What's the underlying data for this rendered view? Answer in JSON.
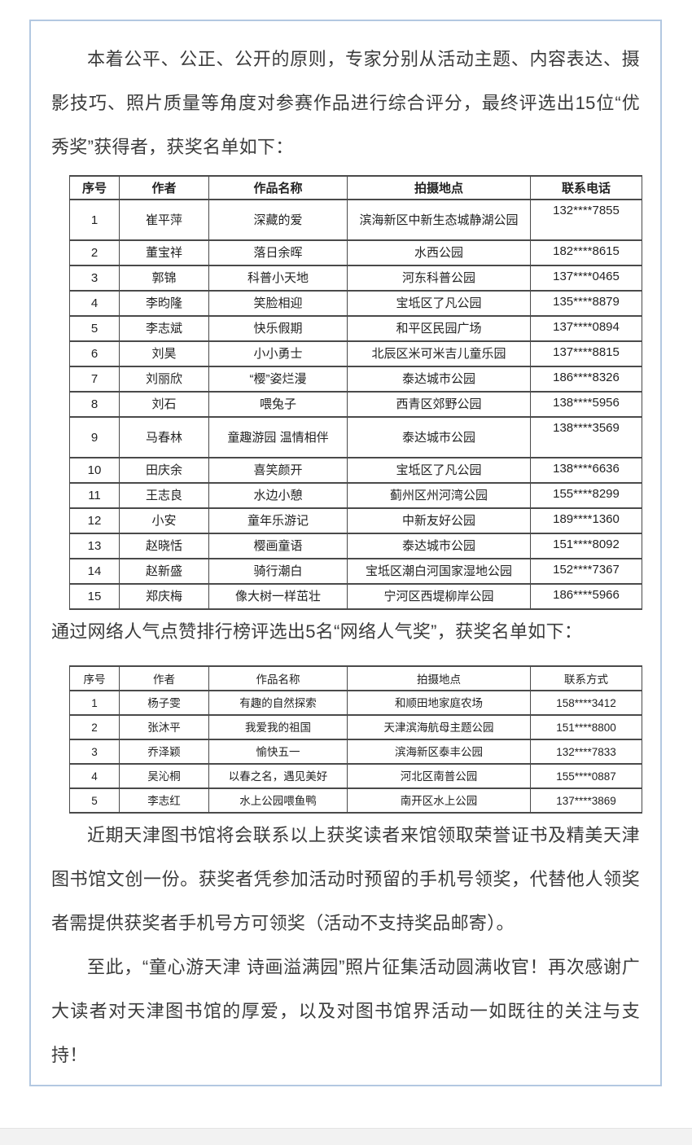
{
  "page": {
    "background": "#ffffff",
    "card_border_color": "#b3c8e1",
    "footer_strip_color": "#f2f2f2",
    "text_color": "#3b3b3b"
  },
  "intro": "本着公平、公正、公开的原则，专家分别从活动主题、内容表达、摄影技巧、照片质量等角度对参赛作品进行综合评分，最终评选出15位“优秀奖”获得者，获奖名单如下：",
  "excellence_table": {
    "headers": [
      "序号",
      "作者",
      "作品名称",
      "拍摄地点",
      "联系电话"
    ],
    "rows": [
      [
        "1",
        "崔平萍",
        "深藏的爱",
        "滨海新区中新生态城静湖公园",
        "132****7855"
      ],
      [
        "2",
        "董宝祥",
        "落日余晖",
        "水西公园",
        "182****8615"
      ],
      [
        "3",
        "郭锦",
        "科普小天地",
        "河东科普公园",
        "137****0465"
      ],
      [
        "4",
        "李昀隆",
        "笑脸相迎",
        "宝坻区了凡公园",
        "135****8879"
      ],
      [
        "5",
        "李志斌",
        "快乐假期",
        "和平区民园广场",
        "137****0894"
      ],
      [
        "6",
        "刘昊",
        "小小勇士",
        "北辰区米可米吉儿童乐园",
        "137****8815"
      ],
      [
        "7",
        "刘丽欣",
        "“樱”姿烂漫",
        "泰达城市公园",
        "186****8326"
      ],
      [
        "8",
        "刘石",
        "喂兔子",
        "西青区郊野公园",
        "138****5956"
      ],
      [
        "9",
        "马春林",
        "童趣游园 温情相伴",
        "泰达城市公园",
        "138****3569"
      ],
      [
        "10",
        "田庆余",
        "喜笑颜开",
        "宝坻区了凡公园",
        "138****6636"
      ],
      [
        "11",
        "王志良",
        "水边小憩",
        "蓟州区州河湾公园",
        "155****8299"
      ],
      [
        "12",
        "小安",
        "童年乐游记",
        "中新友好公园",
        "189****1360"
      ],
      [
        "13",
        "赵晓恬",
        "樱画童语",
        "泰达城市公园",
        "151****8092"
      ],
      [
        "14",
        "赵新盛",
        "骑行潮白",
        "宝坻区潮白河国家湿地公园",
        "152****7367"
      ],
      [
        "15",
        "郑庆梅",
        "像大树一样茁壮",
        "宁河区西堤柳岸公园",
        "186****5966"
      ]
    ]
  },
  "popularity_intro": "通过网络人气点赞排行榜评选出5名“网络人气奖”，获奖名单如下：",
  "popularity_table": {
    "headers": [
      "序号",
      "作者",
      "作品名称",
      "拍摄地点",
      "联系方式"
    ],
    "rows": [
      [
        "1",
        "杨子雯",
        "有趣的自然探索",
        "和顺田地家庭农场",
        "158****3412"
      ],
      [
        "2",
        "张沐平",
        "我爱我的祖国",
        "天津滨海航母主题公园",
        "151****8800"
      ],
      [
        "3",
        "乔泽颖",
        "愉快五一",
        "滨海新区泰丰公园",
        "132****7833"
      ],
      [
        "4",
        "吴沁桐",
        "以春之名，遇见美好",
        "河北区南普公园",
        "155****0887"
      ],
      [
        "5",
        "李志红",
        "水上公园喂鱼鸭",
        "南开区水上公园",
        "137****3869"
      ]
    ]
  },
  "notice": "近期天津图书馆将会联系以上获奖读者来馆领取荣誉证书及精美天津图书馆文创一份。获奖者凭参加活动时预留的手机号领奖，代替他人领奖者需提供获奖者手机号方可领奖（活动不支持奖品邮寄）。",
  "closing": "至此，“童心游天津 诗画溢满园”照片征集活动圆满收官！再次感谢广大读者对天津图书馆的厚爱，以及对图书馆界活动一如既往的关注与支持！"
}
